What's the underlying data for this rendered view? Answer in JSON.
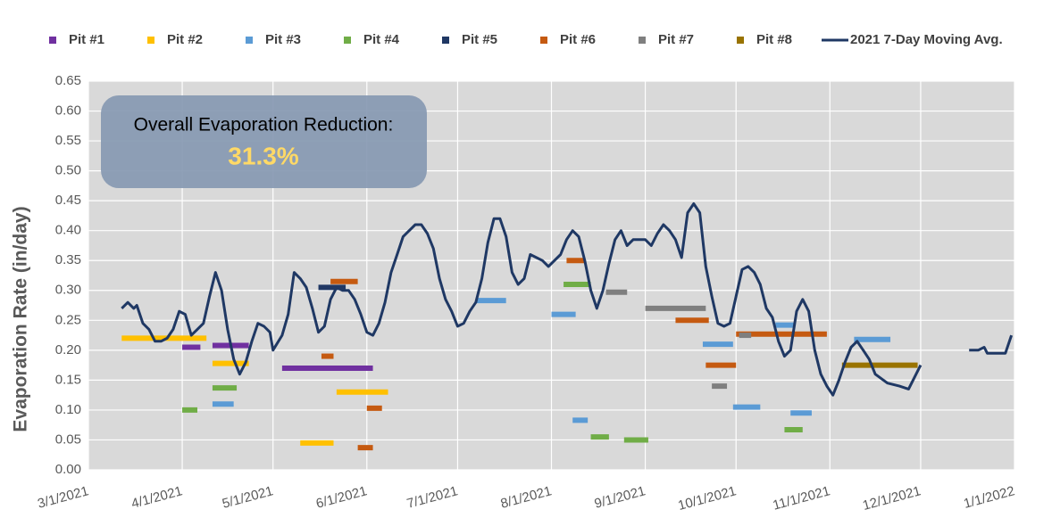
{
  "chart_data": {
    "type": "line",
    "annotation": {
      "title": "Overall Evaporation Reduction:",
      "value": "31.3%"
    },
    "y_label": "Evaporation Rate (in/day)",
    "xlim": [
      "3/1/2021",
      "1/1/2022"
    ],
    "xticks": [
      "3/1/2021",
      "4/1/2021",
      "5/1/2021",
      "6/1/2021",
      "7/1/2021",
      "8/1/2021",
      "9/1/2021",
      "10/1/2021",
      "11/1/2021",
      "12/1/2021",
      "1/1/2022"
    ],
    "ylim": [
      0,
      0.65
    ],
    "yticks": [
      {
        "value": 0,
        "label": "0.00"
      },
      {
        "value": 0.05,
        "label": "0.05"
      },
      {
        "value": 0.1,
        "label": "0.10"
      },
      {
        "value": 0.15,
        "label": "0.15"
      },
      {
        "value": 0.2,
        "label": "0.20"
      },
      {
        "value": 0.25,
        "label": "0.25"
      },
      {
        "value": 0.3,
        "label": "0.30"
      },
      {
        "value": 0.35,
        "label": "0.35"
      },
      {
        "value": 0.4,
        "label": "0.40"
      },
      {
        "value": 0.45,
        "label": "0.45"
      },
      {
        "value": 0.5,
        "label": "0.50"
      },
      {
        "value": 0.55,
        "label": "0.55"
      },
      {
        "value": 0.6,
        "label": "0.60"
      },
      {
        "value": 0.65,
        "label": "0.65"
      }
    ],
    "grid": true,
    "legend": "top",
    "series": [
      {
        "name": "Pit #1",
        "type": "segment",
        "color": "#7030a0",
        "x_start": [
          "4/1/2021",
          "4/11/2021",
          "5/4/2021"
        ],
        "x_end": [
          "4/7/2021",
          "4/23/2021",
          "6/3/2021"
        ],
        "values": [
          0.205,
          0.208,
          0.17
        ]
      },
      {
        "name": "Pit #2",
        "type": "segment",
        "color": "#ffc000",
        "x_start": [
          "3/12/2021",
          "4/11/2021",
          "5/10/2021",
          "5/22/2021"
        ],
        "x_end": [
          "4/9/2021",
          "4/23/2021",
          "5/21/2021",
          "6/8/2021"
        ],
        "values": [
          0.22,
          0.178,
          0.045,
          0.13
        ]
      },
      {
        "name": "Pit #3",
        "type": "segment",
        "color": "#5b9bd5",
        "x_start": [
          "4/11/2021",
          "7/7/2021",
          "8/1/2021",
          "8/8/2021",
          "9/20/2021",
          "9/30/2021",
          "10/14/2021",
          "10/19/2021",
          "11/9/2021"
        ],
        "x_end": [
          "4/18/2021",
          "7/17/2021",
          "8/9/2021",
          "8/13/2021",
          "9/30/2021",
          "10/9/2021",
          "10/20/2021",
          "10/26/2021",
          "11/21/2021"
        ],
        "values": [
          0.11,
          0.283,
          0.26,
          0.083,
          0.21,
          0.105,
          0.242,
          0.095,
          0.218
        ]
      },
      {
        "name": "Pit #4",
        "type": "segment",
        "color": "#70ad47",
        "x_start": [
          "4/1/2021",
          "4/11/2021",
          "8/5/2021",
          "8/14/2021",
          "8/25/2021",
          "10/17/2021"
        ],
        "x_end": [
          "4/6/2021",
          "4/19/2021",
          "8/14/2021",
          "8/20/2021",
          "9/2/2021",
          "10/23/2021"
        ],
        "values": [
          0.1,
          0.137,
          0.31,
          0.055,
          0.05,
          0.067
        ]
      },
      {
        "name": "Pit #5",
        "type": "segment",
        "color": "#203864",
        "x_start": [
          "5/16/2021"
        ],
        "x_end": [
          "5/25/2021"
        ],
        "values": [
          0.305
        ]
      },
      {
        "name": "Pit #6",
        "type": "segment",
        "color": "#c55a11",
        "x_start": [
          "5/17/2021",
          "5/20/2021",
          "5/29/2021",
          "6/1/2021",
          "8/6/2021",
          "9/11/2021",
          "9/21/2021",
          "10/1/2021"
        ],
        "x_end": [
          "5/21/2021",
          "5/29/2021",
          "6/3/2021",
          "6/6/2021",
          "8/12/2021",
          "9/22/2021",
          "10/1/2021",
          "10/31/2021"
        ],
        "values": [
          0.19,
          0.315,
          0.037,
          0.103,
          0.35,
          0.25,
          0.175,
          0.227
        ]
      },
      {
        "name": "Pit #7",
        "type": "segment",
        "color": "#7f7f7f",
        "x_start": [
          "8/19/2021",
          "9/1/2021",
          "9/23/2021",
          "10/2/2021"
        ],
        "x_end": [
          "8/26/2021",
          "9/21/2021",
          "9/28/2021",
          "10/6/2021"
        ],
        "values": [
          0.297,
          0.27,
          0.14,
          0.225
        ]
      },
      {
        "name": "Pit #8",
        "type": "segment",
        "color": "#997300",
        "x_start": [
          "11/5/2021"
        ],
        "x_end": [
          "11/30/2021"
        ],
        "values": [
          0.175
        ]
      },
      {
        "name": "2021 7-Day Moving Avg.",
        "type": "line",
        "color": "#1f3864",
        "x": [
          "3/12/2021",
          "3/14/2021",
          "3/16/2021",
          "3/17/2021",
          "3/19/2021",
          "3/21/2021",
          "3/23/2021",
          "3/25/2021",
          "3/27/2021",
          "3/29/2021",
          "3/31/2021",
          "4/2/2021",
          "4/4/2021",
          "4/6/2021",
          "4/8/2021",
          "4/10/2021",
          "4/12/2021",
          "4/14/2021",
          "4/16/2021",
          "4/18/2021",
          "4/20/2021",
          "4/22/2021",
          "4/24/2021",
          "4/26/2021",
          "4/28/2021",
          "4/30/2021",
          "5/1/2021",
          "5/4/2021",
          "5/6/2021",
          "5/8/2021",
          "5/10/2021",
          "5/12/2021",
          "5/14/2021",
          "5/16/2021",
          "5/18/2021",
          "5/20/2021",
          "5/22/2021",
          "5/24/2021",
          "5/26/2021",
          "5/28/2021",
          "5/30/2021",
          "6/1/2021",
          "6/3/2021",
          "6/5/2021",
          "6/7/2021",
          "6/9/2021",
          "6/11/2021",
          "6/13/2021",
          "6/15/2021",
          "6/17/2021",
          "6/19/2021",
          "6/21/2021",
          "6/23/2021",
          "6/25/2021",
          "6/27/2021",
          "6/29/2021",
          "7/1/2021",
          "7/3/2021",
          "7/5/2021",
          "7/7/2021",
          "7/9/2021",
          "7/11/2021",
          "7/13/2021",
          "7/15/2021",
          "7/17/2021",
          "7/19/2021",
          "7/21/2021",
          "7/23/2021",
          "7/25/2021",
          "7/27/2021",
          "7/29/2021",
          "7/31/2021",
          "8/2/2021",
          "8/4/2021",
          "8/6/2021",
          "8/8/2021",
          "8/10/2021",
          "8/12/2021",
          "8/14/2021",
          "8/16/2021",
          "8/18/2021",
          "8/20/2021",
          "8/22/2021",
          "8/24/2021",
          "8/26/2021",
          "8/28/2021",
          "8/30/2021",
          "9/1/2021",
          "9/3/2021",
          "9/5/2021",
          "9/7/2021",
          "9/9/2021",
          "9/11/2021",
          "9/13/2021",
          "9/15/2021",
          "9/17/2021",
          "9/19/2021",
          "9/21/2021",
          "9/23/2021",
          "9/25/2021",
          "9/27/2021",
          "9/29/2021",
          "10/1/2021",
          "10/3/2021",
          "10/5/2021",
          "10/7/2021",
          "10/9/2021",
          "10/11/2021",
          "10/13/2021",
          "10/15/2021",
          "10/17/2021",
          "10/19/2021",
          "10/21/2021",
          "10/23/2021",
          "10/25/2021",
          "10/27/2021",
          "10/29/2021",
          "10/31/2021",
          "11/2/2021",
          "11/4/2021",
          "11/6/2021",
          "11/8/2021",
          "11/10/2021",
          "11/12/2021",
          "11/14/2021",
          "11/16/2021",
          "11/20/2021",
          "11/24/2021",
          "11/27/2021",
          "12/1/2021",
          "12/9/2021",
          "12/17/2021",
          "12/20/2021",
          "12/22/2021",
          "12/23/2021",
          "12/26/2021",
          "12/29/2021",
          "12/31/2021"
        ],
        "values": [
          0.27,
          0.28,
          0.27,
          0.275,
          0.245,
          0.235,
          0.215,
          0.215,
          0.22,
          0.235,
          0.265,
          0.26,
          0.225,
          0.235,
          0.245,
          0.29,
          0.33,
          0.3,
          0.235,
          0.185,
          0.16,
          0.18,
          0.215,
          0.245,
          0.24,
          0.23,
          0.2,
          0.225,
          0.26,
          0.33,
          0.32,
          0.305,
          0.27,
          0.23,
          0.24,
          0.285,
          0.305,
          0.3,
          0.3,
          0.285,
          0.26,
          0.23,
          0.225,
          0.245,
          0.28,
          0.33,
          0.36,
          0.39,
          0.4,
          0.41,
          0.41,
          0.395,
          0.37,
          0.32,
          0.285,
          0.265,
          0.24,
          0.245,
          0.265,
          0.28,
          0.32,
          0.38,
          0.42,
          0.42,
          0.39,
          0.33,
          0.31,
          0.32,
          0.36,
          0.355,
          0.35,
          0.34,
          0.35,
          0.36,
          0.385,
          0.4,
          0.39,
          0.35,
          0.3,
          0.27,
          0.3,
          0.345,
          0.385,
          0.4,
          0.375,
          0.385,
          0.385,
          0.385,
          0.375,
          0.395,
          0.41,
          0.4,
          0.385,
          0.355,
          0.43,
          0.445,
          0.43,
          0.34,
          0.29,
          0.245,
          0.24,
          0.245,
          0.29,
          0.335,
          0.34,
          0.33,
          0.31,
          0.27,
          0.255,
          0.215,
          0.19,
          0.2,
          0.265,
          0.285,
          0.265,
          0.2,
          0.16,
          0.14,
          0.125,
          0.15,
          0.18,
          0.205,
          0.215,
          0.2,
          0.185,
          0.16,
          0.145,
          0.14,
          0.135,
          0.175,
          null,
          0.2,
          0.2,
          0.205,
          0.195,
          0.195,
          0.195,
          0.225
        ]
      }
    ]
  }
}
